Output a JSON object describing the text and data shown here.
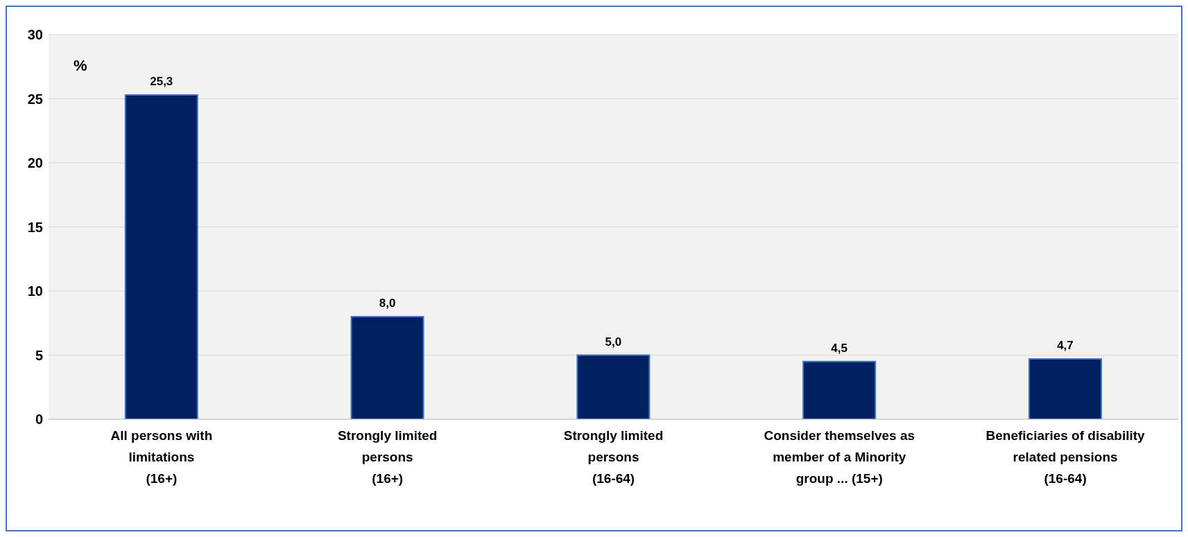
{
  "chart_data": {
    "type": "bar",
    "ylabel": "%",
    "categories": [
      "All persons with\nlimitations\n(16+)",
      "Strongly limited\npersons\n(16+)",
      "Strongly limited\npersons\n(16-64)",
      "Consider themselves as\nmember of a Minority\ngroup ... (15+)",
      "Beneficiaries of disability\nrelated pensions\n(16-64)"
    ],
    "values": [
      25.3,
      8.0,
      5.0,
      4.5,
      4.7
    ],
    "value_labels": [
      "25,3",
      "8,0",
      "5,0",
      "4,5",
      "4,7"
    ],
    "color": "#002060",
    "ylim": [
      0,
      30
    ],
    "yticks": [
      0,
      5,
      10,
      15,
      20,
      25,
      30
    ],
    "grid": "y",
    "legend": false
  }
}
